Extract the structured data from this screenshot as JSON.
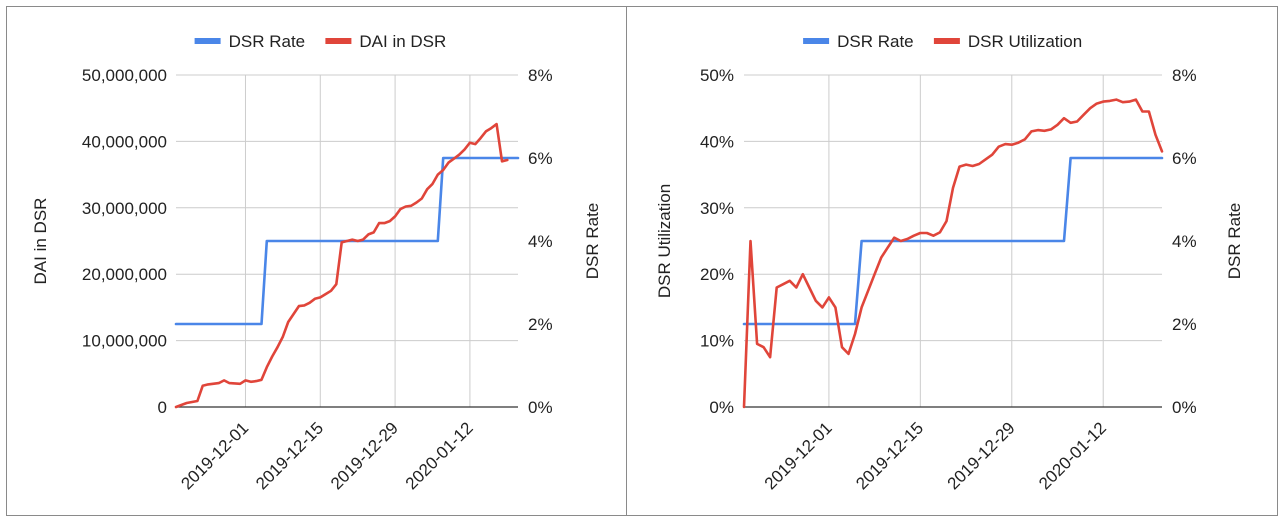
{
  "chart_data": [
    {
      "type": "line",
      "legend_position": "top",
      "grid": true,
      "ylabel": "DAI in DSR",
      "y2label": "DSR Rate",
      "x_ticks": [
        "2019-12-01",
        "2019-12-15",
        "2019-12-29",
        "2020-01-12"
      ],
      "x_range": [
        "2019-11-18",
        "2020-01-21"
      ],
      "y_ticks": [
        "0",
        "10,000,000",
        "20,000,000",
        "30,000,000",
        "40,000,000",
        "50,000,000"
      ],
      "ylim": [
        0,
        50000000
      ],
      "y2_ticks": [
        "0%",
        "2%",
        "4%",
        "6%",
        "8%"
      ],
      "y2lim": [
        0,
        8
      ],
      "series": [
        {
          "name": "DSR Rate",
          "axis": "right",
          "color": "#4a86e8",
          "points": [
            [
              "2019-11-18",
              2
            ],
            [
              "2019-12-04",
              2
            ],
            [
              "2019-12-05",
              4
            ],
            [
              "2020-01-06",
              4
            ],
            [
              "2020-01-07",
              6
            ],
            [
              "2020-01-21",
              6
            ]
          ]
        },
        {
          "name": "DAI in DSR",
          "axis": "left",
          "color": "#e0453a",
          "points": [
            [
              "2019-11-18",
              0
            ],
            [
              "2019-11-19",
              300000
            ],
            [
              "2019-11-20",
              600000
            ],
            [
              "2019-11-22",
              900000
            ],
            [
              "2019-11-23",
              3200000
            ],
            [
              "2019-11-24",
              3400000
            ],
            [
              "2019-11-26",
              3600000
            ],
            [
              "2019-11-27",
              4000000
            ],
            [
              "2019-11-28",
              3600000
            ],
            [
              "2019-11-30",
              3500000
            ],
            [
              "2019-12-01",
              4000000
            ],
            [
              "2019-12-02",
              3800000
            ],
            [
              "2019-12-03",
              3900000
            ],
            [
              "2019-12-04",
              4100000
            ],
            [
              "2019-12-05",
              6000000
            ],
            [
              "2019-12-06",
              7600000
            ],
            [
              "2019-12-07",
              9000000
            ],
            [
              "2019-12-08",
              10600000
            ],
            [
              "2019-12-09",
              12800000
            ],
            [
              "2019-12-10",
              14000000
            ],
            [
              "2019-12-11",
              15200000
            ],
            [
              "2019-12-12",
              15300000
            ],
            [
              "2019-12-13",
              15700000
            ],
            [
              "2019-12-14",
              16300000
            ],
            [
              "2019-12-15",
              16500000
            ],
            [
              "2019-12-16",
              17000000
            ],
            [
              "2019-12-17",
              17500000
            ],
            [
              "2019-12-18",
              18500000
            ],
            [
              "2019-12-19",
              24800000
            ],
            [
              "2019-12-20",
              25000000
            ],
            [
              "2019-12-21",
              25200000
            ],
            [
              "2019-12-22",
              25000000
            ],
            [
              "2019-12-23",
              25200000
            ],
            [
              "2019-12-24",
              26000000
            ],
            [
              "2019-12-25",
              26300000
            ],
            [
              "2019-12-26",
              27700000
            ],
            [
              "2019-12-27",
              27700000
            ],
            [
              "2019-12-28",
              28000000
            ],
            [
              "2019-12-29",
              28700000
            ],
            [
              "2019-12-30",
              29800000
            ],
            [
              "2019-12-31",
              30200000
            ],
            [
              "2020-01-01",
              30300000
            ],
            [
              "2020-01-02",
              30800000
            ],
            [
              "2020-01-03",
              31400000
            ],
            [
              "2020-01-04",
              32800000
            ],
            [
              "2020-01-05",
              33600000
            ],
            [
              "2020-01-06",
              35000000
            ],
            [
              "2020-01-07",
              35700000
            ],
            [
              "2020-01-08",
              36800000
            ],
            [
              "2020-01-09",
              37400000
            ],
            [
              "2020-01-10",
              38000000
            ],
            [
              "2020-01-11",
              38800000
            ],
            [
              "2020-01-12",
              39800000
            ],
            [
              "2020-01-13",
              39600000
            ],
            [
              "2020-01-14",
              40500000
            ],
            [
              "2020-01-15",
              41500000
            ],
            [
              "2020-01-16",
              42000000
            ],
            [
              "2020-01-17",
              42600000
            ],
            [
              "2020-01-18",
              37000000
            ],
            [
              "2020-01-19",
              37200000
            ]
          ]
        }
      ]
    },
    {
      "type": "line",
      "legend_position": "top",
      "grid": true,
      "ylabel": "DSR Utilization",
      "y2label": "DSR Rate",
      "x_ticks": [
        "2019-12-01",
        "2019-12-15",
        "2019-12-29",
        "2020-01-12"
      ],
      "x_range": [
        "2019-11-18",
        "2020-01-21"
      ],
      "y_ticks": [
        "0%",
        "10%",
        "20%",
        "30%",
        "40%",
        "50%"
      ],
      "ylim": [
        0,
        50
      ],
      "y2_ticks": [
        "0%",
        "2%",
        "4%",
        "6%",
        "8%"
      ],
      "y2lim": [
        0,
        8
      ],
      "series": [
        {
          "name": "DSR Rate",
          "axis": "right",
          "color": "#4a86e8",
          "points": [
            [
              "2019-11-18",
              2
            ],
            [
              "2019-12-05",
              2
            ],
            [
              "2019-12-06",
              4
            ],
            [
              "2020-01-06",
              4
            ],
            [
              "2020-01-07",
              6
            ],
            [
              "2020-01-21",
              6
            ]
          ]
        },
        {
          "name": "DSR Utilization",
          "axis": "left",
          "color": "#e0453a",
          "points": [
            [
              "2019-11-18",
              0
            ],
            [
              "2019-11-19",
              25
            ],
            [
              "2019-11-20",
              9.5
            ],
            [
              "2019-11-21",
              9
            ],
            [
              "2019-11-22",
              7.5
            ],
            [
              "2019-11-23",
              18
            ],
            [
              "2019-11-24",
              18.5
            ],
            [
              "2019-11-25",
              19
            ],
            [
              "2019-11-26",
              18
            ],
            [
              "2019-11-27",
              20
            ],
            [
              "2019-11-28",
              18
            ],
            [
              "2019-11-29",
              16
            ],
            [
              "2019-11-30",
              15
            ],
            [
              "2019-12-01",
              16.5
            ],
            [
              "2019-12-02",
              15
            ],
            [
              "2019-12-03",
              9
            ],
            [
              "2019-12-04",
              8
            ],
            [
              "2019-12-05",
              11
            ],
            [
              "2019-12-06",
              15
            ],
            [
              "2019-12-07",
              17.5
            ],
            [
              "2019-12-08",
              20
            ],
            [
              "2019-12-09",
              22.5
            ],
            [
              "2019-12-10",
              24
            ],
            [
              "2019-12-11",
              25.5
            ],
            [
              "2019-12-12",
              25
            ],
            [
              "2019-12-13",
              25.3
            ],
            [
              "2019-12-14",
              25.8
            ],
            [
              "2019-12-15",
              26.2
            ],
            [
              "2019-12-16",
              26.2
            ],
            [
              "2019-12-17",
              25.8
            ],
            [
              "2019-12-18",
              26.3
            ],
            [
              "2019-12-19",
              28
            ],
            [
              "2019-12-20",
              33
            ],
            [
              "2019-12-21",
              36.2
            ],
            [
              "2019-12-22",
              36.5
            ],
            [
              "2019-12-23",
              36.3
            ],
            [
              "2019-12-24",
              36.6
            ],
            [
              "2019-12-25",
              37.3
            ],
            [
              "2019-12-26",
              38
            ],
            [
              "2019-12-27",
              39.2
            ],
            [
              "2019-12-28",
              39.6
            ],
            [
              "2019-12-29",
              39.5
            ],
            [
              "2019-12-30",
              39.8
            ],
            [
              "2019-12-31",
              40.3
            ],
            [
              "2020-01-01",
              41.5
            ],
            [
              "2020-01-02",
              41.7
            ],
            [
              "2020-01-03",
              41.6
            ],
            [
              "2020-01-04",
              41.8
            ],
            [
              "2020-01-05",
              42.5
            ],
            [
              "2020-01-06",
              43.5
            ],
            [
              "2020-01-07",
              42.8
            ],
            [
              "2020-01-08",
              43
            ],
            [
              "2020-01-09",
              44
            ],
            [
              "2020-01-10",
              45
            ],
            [
              "2020-01-11",
              45.7
            ],
            [
              "2020-01-12",
              46
            ],
            [
              "2020-01-13",
              46.1
            ],
            [
              "2020-01-14",
              46.3
            ],
            [
              "2020-01-15",
              45.9
            ],
            [
              "2020-01-16",
              46
            ],
            [
              "2020-01-17",
              46.3
            ],
            [
              "2020-01-18",
              44.5
            ],
            [
              "2020-01-19",
              44.5
            ],
            [
              "2020-01-20",
              41
            ],
            [
              "2020-01-21",
              38.5
            ]
          ]
        }
      ]
    }
  ]
}
